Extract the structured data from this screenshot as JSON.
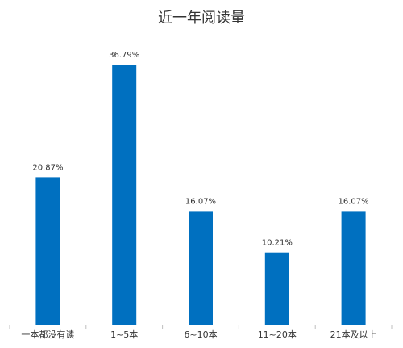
{
  "chart_data": {
    "type": "bar",
    "title": "近一年阅读量",
    "categories": [
      "一本都没有读",
      "1~5本",
      "6~10本",
      "11~20本",
      "21本及以上"
    ],
    "values": [
      20.87,
      36.79,
      16.07,
      10.21,
      16.07
    ],
    "data_labels": [
      "20.87%",
      "36.79%",
      "16.07%",
      "10.21%",
      "16.07%"
    ],
    "ylim": [
      0,
      40
    ],
    "grid": false,
    "legend": "none",
    "bar_color": "#0070c0",
    "axis_color": "#bfbfbf",
    "text_color": "#333333"
  }
}
